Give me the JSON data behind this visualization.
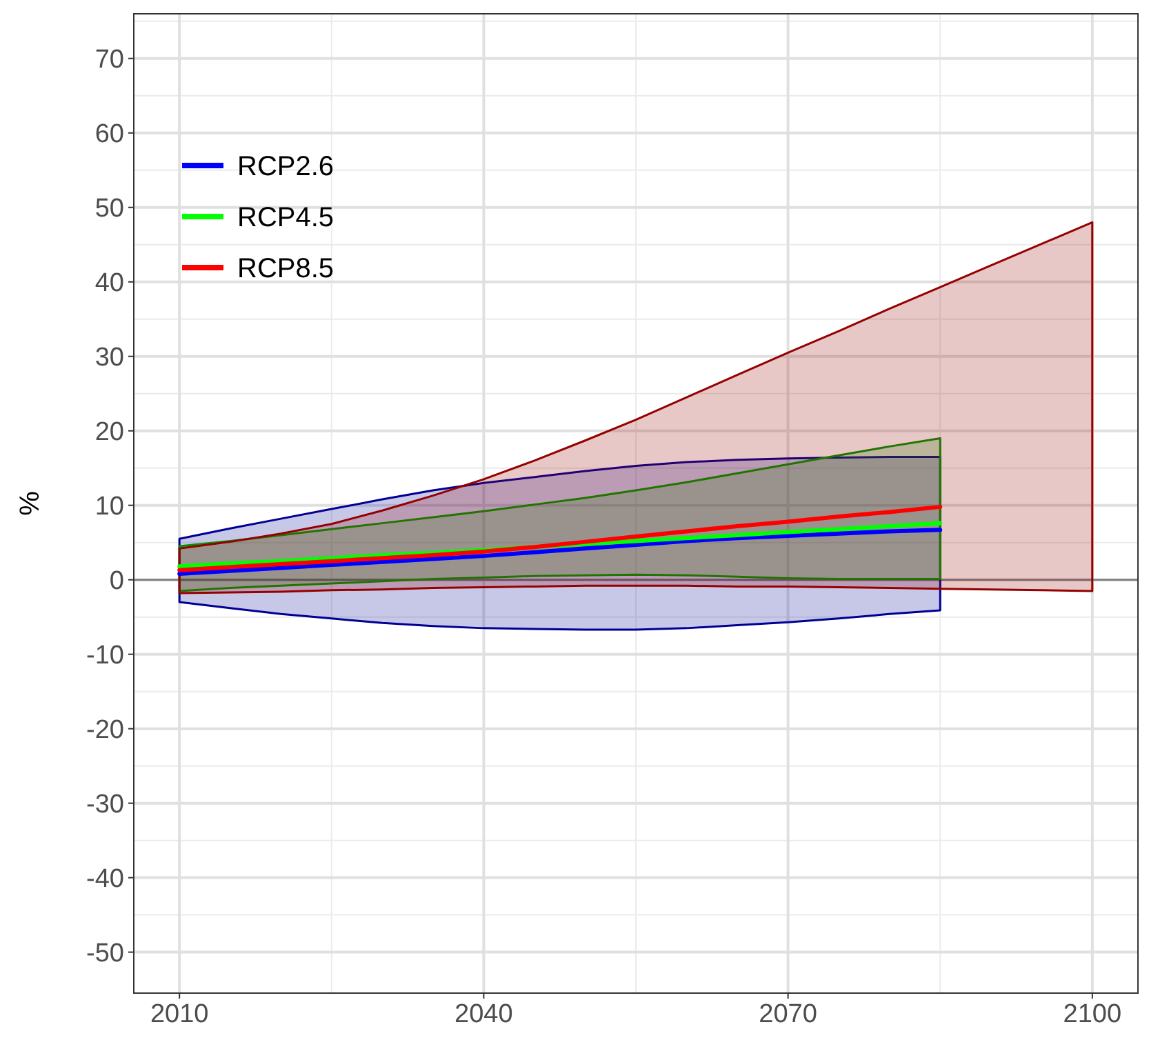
{
  "chart_data": {
    "type": "line",
    "ylabel": "%",
    "x": [
      2010,
      2015,
      2020,
      2025,
      2030,
      2035,
      2040,
      2045,
      2050,
      2055,
      2060,
      2065,
      2070,
      2075,
      2080,
      2085,
      2090,
      2095,
      2100
    ],
    "xlim": [
      2005.5,
      2104.5
    ],
    "xticks": [
      2010,
      2040,
      2070,
      2100
    ],
    "ylim": [
      -55.5,
      76
    ],
    "yticks": [
      -50,
      -40,
      -30,
      -20,
      -10,
      0,
      10,
      20,
      30,
      40,
      50,
      60,
      70
    ],
    "grid": true,
    "legend": "top left",
    "ref_lines": [
      {
        "axis": "y",
        "value": 0,
        "color": "#808080"
      }
    ],
    "series": [
      {
        "name": "RCP2.6",
        "color": "#0000ff",
        "values": [
          0.8,
          1.2,
          1.6,
          2.0,
          2.4,
          2.8,
          3.2,
          3.7,
          4.2,
          4.7,
          5.2,
          5.6,
          5.9,
          6.2,
          6.5,
          6.7,
          null,
          null,
          null
        ],
        "lower": [
          -3,
          -3.8,
          -4.6,
          -5.2,
          -5.8,
          -6.2,
          -6.5,
          -6.6,
          -6.7,
          -6.7,
          -6.5,
          -6.1,
          -5.7,
          -5.2,
          -4.6,
          -4.1,
          null,
          null,
          null
        ],
        "upper": [
          5.5,
          6.9,
          8.2,
          9.5,
          10.8,
          12,
          13,
          13.8,
          14.6,
          15.3,
          15.8,
          16.1,
          16.3,
          16.4,
          16.5,
          16.5,
          null,
          null,
          null
        ]
      },
      {
        "name": "RCP4.5",
        "color": "#00ff00",
        "values": [
          1.8,
          2.2,
          2.5,
          2.9,
          3.3,
          3.6,
          4.0,
          4.4,
          4.8,
          5.2,
          5.6,
          6.0,
          6.4,
          6.8,
          7.2,
          7.6,
          null,
          null,
          null
        ],
        "lower": [
          -1.5,
          -1.1,
          -0.8,
          -0.5,
          -0.2,
          0.1,
          0.3,
          0.5,
          0.6,
          0.7,
          0.6,
          0.4,
          0.2,
          0.1,
          0.1,
          0.1,
          null,
          null,
          null
        ],
        "upper": [
          4.5,
          5.2,
          6,
          6.8,
          7.6,
          8.4,
          9.2,
          10.1,
          11,
          12,
          13.1,
          14.3,
          15.5,
          16.7,
          17.9,
          19,
          null,
          null,
          null
        ]
      },
      {
        "name": "RCP8.5",
        "color": "#ff0000",
        "values": [
          1.3,
          1.7,
          2.1,
          2.5,
          2.9,
          3.3,
          3.8,
          4.4,
          5.1,
          5.8,
          6.5,
          7.2,
          7.8,
          8.5,
          9.1,
          9.8,
          null,
          null,
          null
        ],
        "lower": [
          -1.8,
          -1.7,
          -1.6,
          -1.4,
          -1.3,
          -1.1,
          -1.0,
          -0.9,
          -0.8,
          -0.8,
          -0.8,
          -0.9,
          -0.9,
          -1.0,
          -1.1,
          -1.2,
          -1.3,
          -1.4,
          -1.5
        ],
        "upper": [
          4.2,
          5.1,
          6.2,
          7.5,
          9.3,
          11.3,
          13.5,
          16,
          18.7,
          21.5,
          24.5,
          27.5,
          30.5,
          33.4,
          36.4,
          39.3,
          42.2,
          45.1,
          48
        ]
      }
    ]
  }
}
